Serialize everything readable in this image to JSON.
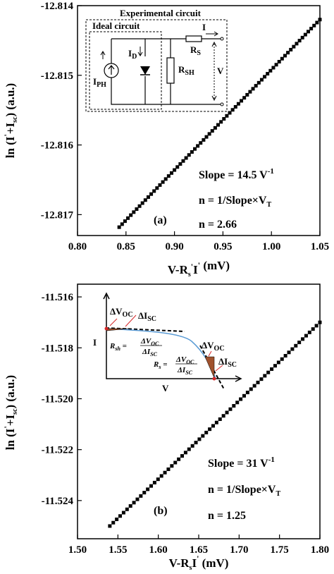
{
  "chart_data": [
    {
      "type": "scatter",
      "panel_label": "(a)",
      "xlabel": "V-RₛI' (mV)",
      "ylabel": "ln (I'+Iₛc) (a.u.)",
      "xlim": [
        0.8,
        1.05
      ],
      "ylim": [
        -12.8173,
        -12.814
      ],
      "xticks": [
        "0.80",
        "0.85",
        "0.90",
        "0.95",
        "1.00",
        "1.05"
      ],
      "yticks": [
        "-12.814",
        "-12.815",
        "-12.816",
        "-12.817"
      ],
      "line": {
        "x_start": 0.843,
        "y_start": -12.81718,
        "x_end": 1.05,
        "y_end": -12.8142,
        "n_points": 70
      },
      "annotations": [
        "Slope = 14.5 V⁻¹",
        "n = 1/Slope×Vₜ",
        "n = 2.66"
      ],
      "inset": {
        "title_outer": "Experimental circuit",
        "title_inner": "Ideal circuit",
        "labels": {
          "current": "I",
          "rs": "Rₛ",
          "id": "Iᴅ",
          "rsh": "Rₛʜ",
          "iph": "Iₚʜ",
          "v": "V"
        }
      }
    },
    {
      "type": "scatter",
      "panel_label": "(b)",
      "xlabel": "V-RₛI' (mV)",
      "ylabel": "ln (I'+Iₛc) (a.u.)",
      "xlim": [
        1.5,
        1.8
      ],
      "ylim": [
        -11.5255,
        -11.5155
      ],
      "xticks": [
        "1.50",
        "1.55",
        "1.60",
        "1.65",
        "1.70",
        "1.75",
        "1.80"
      ],
      "yticks": [
        "-11.516",
        "-11.518",
        "-11.520",
        "-11.522",
        "-11.524"
      ],
      "line": {
        "x_start": 1.54,
        "y_start": -11.525,
        "x_end": 1.8,
        "y_end": -11.517,
        "n_points": 62
      },
      "annotations": [
        "Slope = 31 V⁻¹",
        "n = 1/Slope×Vₜ",
        "n = 1.25"
      ],
      "inset": {
        "axis_x": "V",
        "axis_y": "I",
        "labels": [
          "ΔVₒc",
          "ΔIₛc",
          "ΔVₒc",
          "ΔIₛc"
        ],
        "rsh_formula": "Rₛₕ = ΔVₒc / ΔIₛc",
        "rs_formula": "Rₛ = ΔVₒc / ΔIₛc"
      }
    }
  ]
}
